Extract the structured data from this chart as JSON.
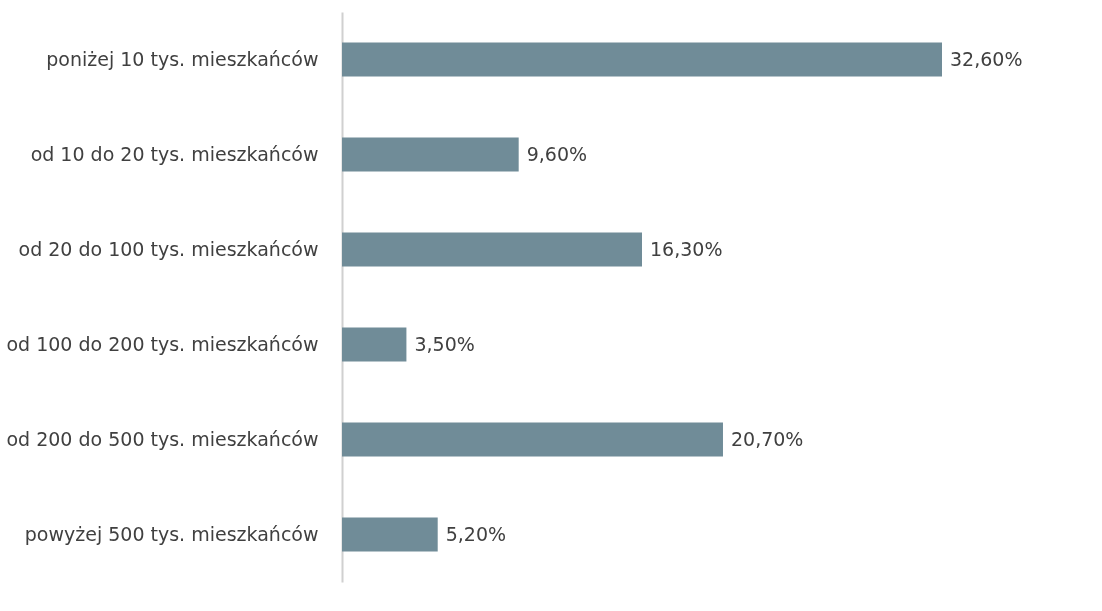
{
  "chart_data": {
    "type": "bar",
    "orientation": "horizontal",
    "categories": [
      "poniżej 10 tys. mieszkańców",
      "od 10 do 20 tys. mieszkańców",
      "od 20 do 100 tys. mieszkańców",
      "od 100 do 200 tys. mieszkańców",
      "od 200 do 500 tys. mieszkańców",
      "powyżej 500 tys. mieszkańców"
    ],
    "values": [
      32.6,
      9.6,
      16.3,
      3.5,
      20.7,
      5.2
    ],
    "value_labels": [
      "32,60%",
      "9,60%",
      "16,30%",
      "3,50%",
      "20,70%",
      "5,20%"
    ],
    "color": "#708c98",
    "grid": false
  }
}
